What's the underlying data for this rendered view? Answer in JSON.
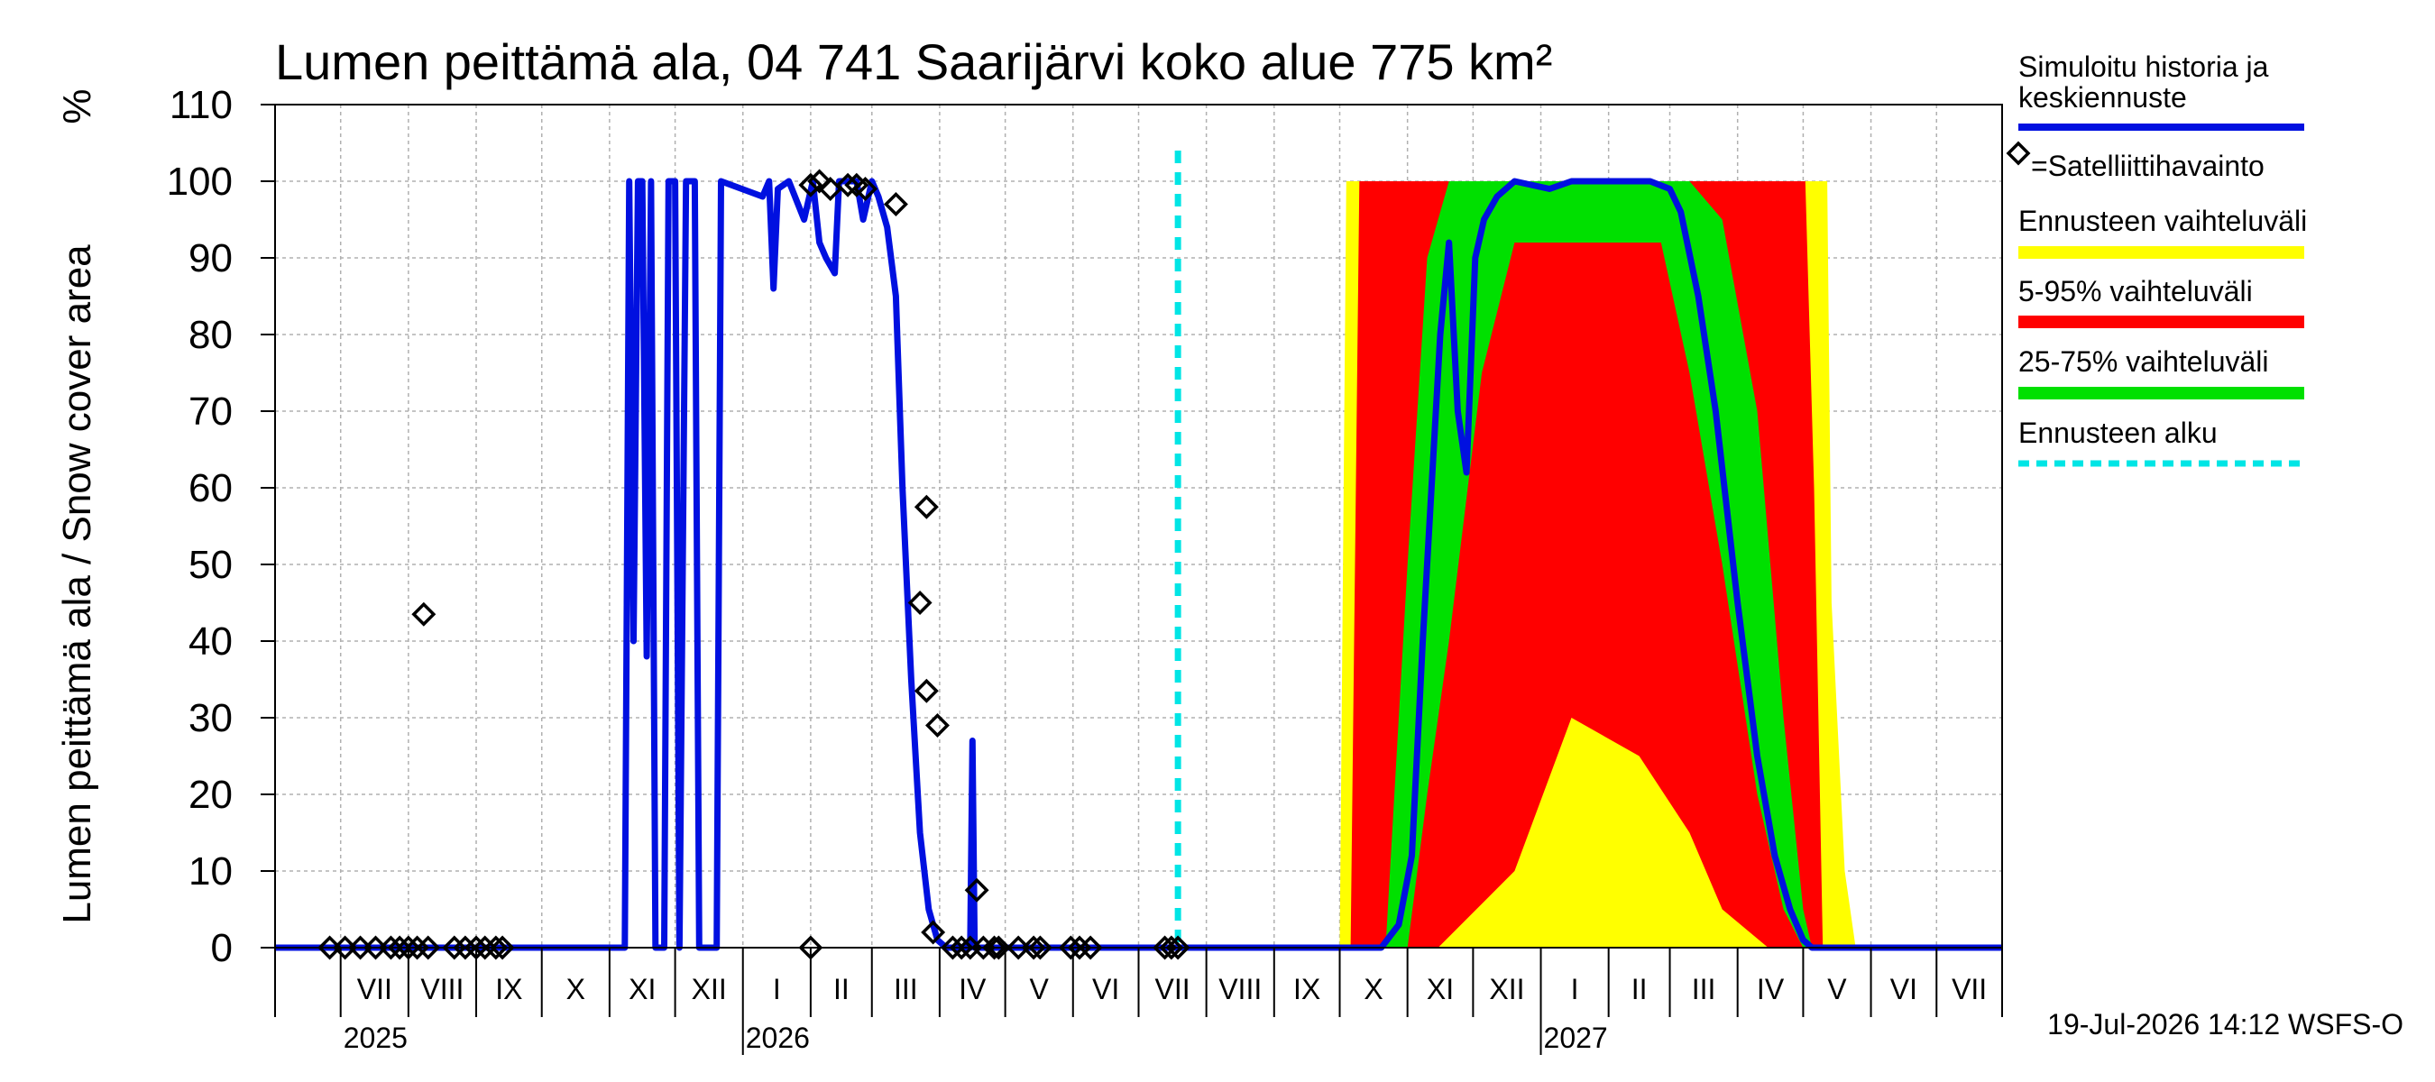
{
  "chart_data": {
    "type": "area",
    "title": "Lumen peittämä ala, 04 741 Saarijärvi koko alue 775 km²",
    "ylabel": "Lumen peittämä ala / Snow cover area",
    "yunit": "%",
    "ylim": [
      0,
      110
    ],
    "yticks": [
      "0",
      "10",
      "20",
      "30",
      "40",
      "50",
      "60",
      "70",
      "80",
      "90",
      "100",
      "110"
    ],
    "xlim": [
      "2025-06-01",
      "2027-07-31"
    ],
    "grid": true,
    "legend_position": "right",
    "months": [
      "VII",
      "VIII",
      "IX",
      "X",
      "XI",
      "XII",
      "I",
      "II",
      "III",
      "IV",
      "V",
      "VI",
      "VII",
      "VIII",
      "IX",
      "X",
      "XI",
      "XII",
      "I",
      "II",
      "III",
      "IV",
      "V",
      "VI",
      "VII"
    ],
    "years": [
      "2025",
      "2026",
      "2027"
    ],
    "forecast_start": "2026-07-19",
    "legend": [
      {
        "key": "sim",
        "label": "Simuloitu historia ja keskiennuste",
        "color": "#0010e0",
        "style": "line"
      },
      {
        "key": "sat",
        "label": "=Satelliittihavainto",
        "color": "#000000",
        "style": "diamond"
      },
      {
        "key": "range",
        "label": "Ennusteen vaihteluväli",
        "color": "#ffff00",
        "style": "band"
      },
      {
        "key": "p5_95",
        "label": "5-95% vaihteluväli",
        "color": "#ff0000",
        "style": "band"
      },
      {
        "key": "p25_75",
        "label": "25-75% vaihteluväli",
        "color": "#00e000",
        "style": "band"
      },
      {
        "key": "fstart",
        "label": "Ennusteen alku",
        "color": "#00e5e5",
        "style": "dashed"
      }
    ],
    "series": [
      {
        "name": "Simuloitu historia ja keskiennuste",
        "points": [
          [
            "2025-06-01",
            0
          ],
          [
            "2025-11-08",
            0
          ],
          [
            "2025-11-10",
            100
          ],
          [
            "2025-11-12",
            40
          ],
          [
            "2025-11-14",
            100
          ],
          [
            "2025-11-16",
            100
          ],
          [
            "2025-11-18",
            38
          ],
          [
            "2025-11-20",
            100
          ],
          [
            "2025-11-22",
            0
          ],
          [
            "2025-11-26",
            0
          ],
          [
            "2025-11-28",
            100
          ],
          [
            "2025-12-01",
            100
          ],
          [
            "2025-12-03",
            0
          ],
          [
            "2025-12-06",
            100
          ],
          [
            "2025-12-10",
            100
          ],
          [
            "2025-12-12",
            0
          ],
          [
            "2025-12-20",
            0
          ],
          [
            "2025-12-22",
            100
          ],
          [
            "2026-01-10",
            98
          ],
          [
            "2026-01-13",
            100
          ],
          [
            "2026-01-15",
            86
          ],
          [
            "2026-01-17",
            99
          ],
          [
            "2026-01-22",
            100
          ],
          [
            "2026-01-29",
            95
          ],
          [
            "2026-02-02",
            100
          ],
          [
            "2026-02-05",
            92
          ],
          [
            "2026-02-08",
            90
          ],
          [
            "2026-02-12",
            88
          ],
          [
            "2026-02-14",
            100
          ],
          [
            "2026-02-22",
            100
          ],
          [
            "2026-02-25",
            95
          ],
          [
            "2026-03-01",
            100
          ],
          [
            "2026-03-04",
            98
          ],
          [
            "2026-03-08",
            94
          ],
          [
            "2026-03-12",
            85
          ],
          [
            "2026-03-15",
            60
          ],
          [
            "2026-03-19",
            35
          ],
          [
            "2026-03-23",
            15
          ],
          [
            "2026-03-27",
            5
          ],
          [
            "2026-03-31",
            1
          ],
          [
            "2026-04-04",
            0
          ],
          [
            "2026-04-15",
            0
          ],
          [
            "2026-04-16",
            27
          ],
          [
            "2026-04-17",
            0
          ],
          [
            "2026-07-19",
            0
          ],
          [
            "2026-10-20",
            0
          ],
          [
            "2026-10-28",
            3
          ],
          [
            "2026-11-03",
            12
          ],
          [
            "2026-11-08",
            40
          ],
          [
            "2026-11-12",
            60
          ],
          [
            "2026-11-16",
            80
          ],
          [
            "2026-11-20",
            92
          ],
          [
            "2026-11-24",
            70
          ],
          [
            "2026-11-28",
            62
          ],
          [
            "2026-12-02",
            90
          ],
          [
            "2026-12-06",
            95
          ],
          [
            "2026-12-12",
            98
          ],
          [
            "2026-12-20",
            100
          ],
          [
            "2027-01-05",
            99
          ],
          [
            "2027-01-15",
            100
          ],
          [
            "2027-02-20",
            100
          ],
          [
            "2027-03-01",
            99
          ],
          [
            "2027-03-06",
            96
          ],
          [
            "2027-03-14",
            85
          ],
          [
            "2027-03-22",
            70
          ],
          [
            "2027-04-01",
            45
          ],
          [
            "2027-04-10",
            25
          ],
          [
            "2027-04-18",
            12
          ],
          [
            "2027-04-25",
            5
          ],
          [
            "2027-05-01",
            1
          ],
          [
            "2027-05-05",
            0
          ],
          [
            "2027-07-31",
            0
          ]
        ]
      }
    ],
    "bands": [
      {
        "name": "Ennusteen vaihteluväli",
        "color": "#ffff00",
        "points": [
          [
            "2026-10-01",
            0,
            0
          ],
          [
            "2026-10-04",
            0,
            100
          ],
          [
            "2027-05-12",
            0,
            100
          ],
          [
            "2027-05-14",
            0,
            45
          ],
          [
            "2027-05-20",
            0,
            10
          ],
          [
            "2027-05-25",
            0,
            0
          ]
        ]
      },
      {
        "name": "5-95% vaihteluväli",
        "color": "#ff0000",
        "points": [
          [
            "2026-10-06",
            0,
            0
          ],
          [
            "2026-10-10",
            0,
            100
          ],
          [
            "2026-11-15",
            0,
            100
          ],
          [
            "2026-12-20",
            10,
            100
          ],
          [
            "2027-01-15",
            30,
            100
          ],
          [
            "2027-02-15",
            25,
            100
          ],
          [
            "2027-03-10",
            15,
            100
          ],
          [
            "2027-03-25",
            5,
            100
          ],
          [
            "2027-04-15",
            0,
            100
          ],
          [
            "2027-05-02",
            0,
            100
          ],
          [
            "2027-05-06",
            0,
            60
          ],
          [
            "2027-05-10",
            0,
            0
          ]
        ]
      },
      {
        "name": "25-75% vaihteluväli",
        "color": "#00e000",
        "points": [
          [
            "2026-10-22",
            0,
            0
          ],
          [
            "2026-11-01",
            0,
            50
          ],
          [
            "2026-11-10",
            20,
            90
          ],
          [
            "2026-11-20",
            40,
            100
          ],
          [
            "2026-12-05",
            75,
            100
          ],
          [
            "2026-12-20",
            92,
            100
          ],
          [
            "2027-02-25",
            92,
            100
          ],
          [
            "2027-03-10",
            75,
            100
          ],
          [
            "2027-03-25",
            50,
            95
          ],
          [
            "2027-04-10",
            20,
            70
          ],
          [
            "2027-04-22",
            5,
            30
          ],
          [
            "2027-05-01",
            0,
            5
          ],
          [
            "2027-05-05",
            0,
            0
          ]
        ]
      }
    ],
    "observations": [
      [
        "2025-06-26",
        0
      ],
      [
        "2025-07-03",
        0
      ],
      [
        "2025-07-10",
        0
      ],
      [
        "2025-07-17",
        0
      ],
      [
        "2025-07-24",
        0
      ],
      [
        "2025-07-28",
        0
      ],
      [
        "2025-08-01",
        0
      ],
      [
        "2025-08-05",
        0
      ],
      [
        "2025-08-08",
        43.5
      ],
      [
        "2025-08-10",
        0
      ],
      [
        "2025-08-22",
        0
      ],
      [
        "2025-08-27",
        0
      ],
      [
        "2025-09-01",
        0
      ],
      [
        "2025-09-05",
        0
      ],
      [
        "2025-09-10",
        0
      ],
      [
        "2025-09-13",
        0
      ],
      [
        "2026-02-01",
        0
      ],
      [
        "2026-02-01",
        99.5
      ],
      [
        "2026-02-05",
        100
      ],
      [
        "2026-02-10",
        99
      ],
      [
        "2026-02-18",
        99.5
      ],
      [
        "2026-02-22",
        99.5
      ],
      [
        "2026-02-26",
        99
      ],
      [
        "2026-03-12",
        97
      ],
      [
        "2026-03-23",
        45
      ],
      [
        "2026-03-26",
        57.5
      ],
      [
        "2026-03-26",
        33.5
      ],
      [
        "2026-03-31",
        29
      ],
      [
        "2026-03-29",
        2
      ],
      [
        "2026-04-07",
        0
      ],
      [
        "2026-04-11",
        0
      ],
      [
        "2026-04-15",
        0
      ],
      [
        "2026-04-18",
        7.5
      ],
      [
        "2026-04-21",
        0
      ],
      [
        "2026-04-26",
        0
      ],
      [
        "2026-04-28",
        0
      ],
      [
        "2026-05-07",
        0
      ],
      [
        "2026-05-14",
        0
      ],
      [
        "2026-05-17",
        0
      ],
      [
        "2026-05-31",
        0
      ],
      [
        "2026-06-04",
        0
      ],
      [
        "2026-06-09",
        0
      ],
      [
        "2026-07-13",
        0
      ],
      [
        "2026-07-16",
        0
      ],
      [
        "2026-07-19",
        0
      ]
    ]
  },
  "footer": "19-Jul-2026 14:12 WSFS-O"
}
